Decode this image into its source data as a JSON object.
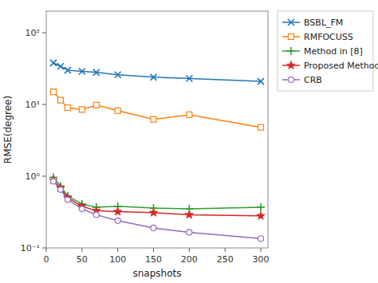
{
  "chart_data": {
    "type": "line",
    "xlabel": "snapshots",
    "ylabel": "RMSE(degree)",
    "x": [
      10,
      20,
      30,
      50,
      70,
      100,
      150,
      200,
      300
    ],
    "series": [
      {
        "name": "BSBL_FM",
        "marker": "x",
        "values": [
          38,
          34,
          30,
          29,
          28,
          26,
          24,
          23,
          21
        ]
      },
      {
        "name": "RMFOCUSS",
        "marker": "square",
        "values": [
          15,
          11.5,
          9.0,
          8.5,
          9.8,
          8.2,
          6.2,
          7.2,
          4.8
        ]
      },
      {
        "name": "Method in [8]",
        "marker": "plus",
        "values": [
          0.97,
          0.73,
          0.53,
          0.41,
          0.37,
          0.38,
          0.36,
          0.35,
          0.37
        ]
      },
      {
        "name": "Proposed Method",
        "marker": "star",
        "values": [
          0.88,
          0.68,
          0.5,
          0.38,
          0.33,
          0.32,
          0.31,
          0.29,
          0.28
        ]
      },
      {
        "name": "CRB",
        "marker": "circle",
        "values": [
          0.85,
          0.65,
          0.47,
          0.35,
          0.29,
          0.24,
          0.19,
          0.165,
          0.135
        ]
      }
    ],
    "log": "y",
    "xlim": [
      0,
      310
    ],
    "ylim": [
      0.1,
      200
    ],
    "xticks": [
      0,
      50,
      100,
      150,
      200,
      250,
      300
    ],
    "yticks": [
      {
        "value": 0.1,
        "label": "10⁻¹"
      },
      {
        "value": 1,
        "label": "10⁰"
      },
      {
        "value": 10,
        "label": "10¹"
      },
      {
        "value": 100,
        "label": "10²"
      }
    ],
    "grid": false,
    "legend": "upper right"
  }
}
